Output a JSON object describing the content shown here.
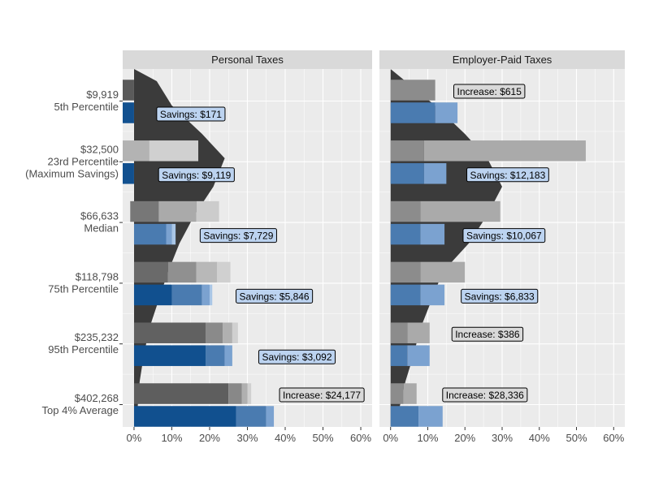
{
  "chart_data": {
    "type": "bar",
    "x_ticks": [
      "0%",
      "10%",
      "20%",
      "30%",
      "40%",
      "50%",
      "60%"
    ],
    "xlim": [
      -3,
      63
    ],
    "categories": [
      {
        "income": "$9,919",
        "label": "5th Percentile"
      },
      {
        "income": "$32,500",
        "label": "23rd Percentile",
        "label2": "(Maximum Savings)"
      },
      {
        "income": "$66,633",
        "label": "Median"
      },
      {
        "income": "$118,798",
        "label": "75th Percentile"
      },
      {
        "income": "$235,232",
        "label": "95th Percentile"
      },
      {
        "income": "$402,268",
        "label": "Top 4% Average"
      }
    ],
    "panels": [
      {
        "title": "Personal Taxes",
        "groups": [
          {
            "current": [
              [
                -3,
                0,
                "#5a5a5a"
              ]
            ],
            "proposed": [
              [
                -3,
                0,
                "#11508f"
              ]
            ],
            "annotation": {
              "text": "Savings: $171",
              "kind": "savings",
              "x": 6
            }
          },
          {
            "current": [
              [
                -3,
                4,
                "#b3b3b3"
              ],
              [
                4,
                17,
                "#d0d0d0"
              ]
            ],
            "proposed": [
              [
                -3,
                0,
                "#11508f"
              ]
            ],
            "annotation": {
              "text": "Savings: $9,119",
              "kind": "savings",
              "x": 6.5
            }
          },
          {
            "current": [
              [
                -1,
                6.5,
                "#777777"
              ],
              [
                6.5,
                16.5,
                "#aaaaaa"
              ],
              [
                16.5,
                22.5,
                "#cccccc"
              ]
            ],
            "proposed": [
              [
                0,
                8.5,
                "#4a7bb0"
              ],
              [
                8.5,
                10,
                "#7ba2d0"
              ],
              [
                10,
                11,
                "#a9c6e6"
              ]
            ],
            "annotation": {
              "text": "Savings: $7,729",
              "kind": "savings",
              "x": 17.5
            }
          },
          {
            "current": [
              [
                0,
                9,
                "#6a6a6a"
              ],
              [
                9,
                16.5,
                "#909090"
              ],
              [
                16.5,
                22,
                "#b8b8b8"
              ],
              [
                22,
                25.5,
                "#d0d0d0"
              ]
            ],
            "proposed": [
              [
                0,
                10,
                "#11508f"
              ],
              [
                10,
                18,
                "#4a7bb0"
              ],
              [
                18,
                20,
                "#7ba2d0"
              ],
              [
                20,
                20.7,
                "#a9c6e6"
              ]
            ],
            "annotation": {
              "text": "Savings: $5,846",
              "kind": "savings",
              "x": 27
            }
          },
          {
            "current": [
              [
                0,
                19,
                "#616161"
              ],
              [
                19,
                23.5,
                "#8a8a8a"
              ],
              [
                23.5,
                26,
                "#b0b0b0"
              ],
              [
                26,
                27.5,
                "#d0d0d0"
              ]
            ],
            "proposed": [
              [
                0,
                19,
                "#11508f"
              ],
              [
                19,
                24,
                "#4a7bb0"
              ],
              [
                24,
                26,
                "#7ba2d0"
              ]
            ],
            "annotation": {
              "text": "Savings: $3,092",
              "kind": "savings",
              "x": 33
            }
          },
          {
            "current": [
              [
                0,
                25,
                "#5e5e5e"
              ],
              [
                25,
                28.5,
                "#888888"
              ],
              [
                28.5,
                30,
                "#b0b0b0"
              ],
              [
                30,
                31,
                "#d0d0d0"
              ]
            ],
            "proposed": [
              [
                0,
                27,
                "#11508f"
              ],
              [
                27,
                35,
                "#4a7bb0"
              ],
              [
                35,
                37,
                "#7ba2d0"
              ]
            ],
            "annotation": {
              "text": "Increase: $24,177",
              "kind": "increase",
              "x": 38.5
            }
          }
        ]
      },
      {
        "title": "Employer-Paid Taxes",
        "groups": [
          {
            "current": [
              [
                0,
                12,
                "#8c8c8c"
              ]
            ],
            "proposed": [
              [
                0,
                12,
                "#4a7bb0"
              ],
              [
                12,
                18,
                "#7ba2d0"
              ]
            ],
            "annotation": {
              "text": "Increase: $615",
              "kind": "increase",
              "x": 17
            }
          },
          {
            "current": [
              [
                0,
                9,
                "#8c8c8c"
              ],
              [
                9,
                52.5,
                "#aaaaaa"
              ]
            ],
            "proposed": [
              [
                0,
                9,
                "#4a7bb0"
              ],
              [
                9,
                15,
                "#7ba2d0"
              ]
            ],
            "annotation": {
              "text": "Savings: $12,183",
              "kind": "savings",
              "x": 20.5
            }
          },
          {
            "current": [
              [
                0,
                8,
                "#8c8c8c"
              ],
              [
                8,
                29.5,
                "#aaaaaa"
              ]
            ],
            "proposed": [
              [
                0,
                8,
                "#4a7bb0"
              ],
              [
                8,
                14.5,
                "#7ba2d0"
              ]
            ],
            "annotation": {
              "text": "Savings: $10,067",
              "kind": "savings",
              "x": 19.5
            }
          },
          {
            "current": [
              [
                0,
                8,
                "#8c8c8c"
              ],
              [
                8,
                20,
                "#aaaaaa"
              ]
            ],
            "proposed": [
              [
                0,
                8,
                "#4a7bb0"
              ],
              [
                8,
                14.5,
                "#7ba2d0"
              ]
            ],
            "annotation": {
              "text": "Savings: $6,833",
              "kind": "savings",
              "x": 19
            }
          },
          {
            "current": [
              [
                0,
                4.5,
                "#8c8c8c"
              ],
              [
                4.5,
                10.5,
                "#aaaaaa"
              ]
            ],
            "proposed": [
              [
                0,
                4.5,
                "#4a7bb0"
              ],
              [
                4.5,
                10.5,
                "#7ba2d0"
              ]
            ],
            "annotation": {
              "text": "Increase: $386",
              "kind": "increase",
              "x": 16.5
            }
          },
          {
            "current": [
              [
                0,
                3.5,
                "#8c8c8c"
              ],
              [
                3.5,
                7,
                "#aaaaaa"
              ]
            ],
            "proposed": [
              [
                0,
                7.5,
                "#4a7bb0"
              ],
              [
                7.5,
                14,
                "#7ba2d0"
              ]
            ],
            "annotation": {
              "text": "Increase: $28,336",
              "kind": "increase",
              "x": 14
            }
          }
        ]
      }
    ],
    "colors": {
      "panel_background": "#ebebeb",
      "grid": "#ffffff",
      "strip_background": "#d9d9d9",
      "density": "#3b3b3b",
      "savings_fill": "#bcd3f0",
      "increase_fill": "#d9d9d9"
    }
  }
}
